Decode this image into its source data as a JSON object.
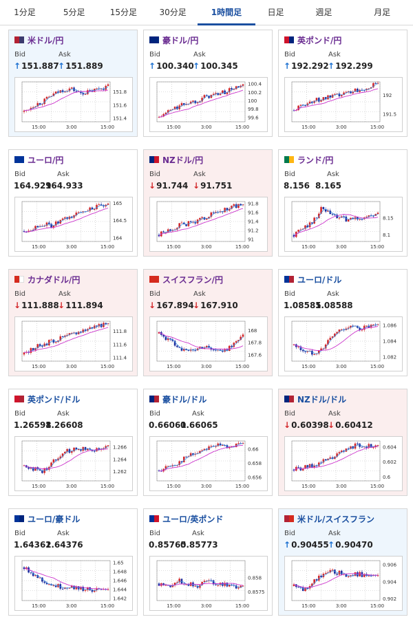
{
  "tabs": [
    "1分足",
    "5分足",
    "15分足",
    "30分足",
    "1時間足",
    "日足",
    "週足",
    "月足"
  ],
  "active_tab": 4,
  "labels": {
    "bid": "Bid",
    "ask": "Ask"
  },
  "colors": {
    "candle_up": "#d2272a",
    "candle_down": "#1e2e9e",
    "ma_short": "#3c8ee0",
    "ma_long": "#cc33cc"
  },
  "cards": [
    {
      "pair": "米ドル/円",
      "flag": [
        "#b22234",
        "#3c3b6e"
      ],
      "bg": "up",
      "dir": "up",
      "bid": "151.887",
      "ask": "151.889",
      "chart_data": {
        "type": "candlestick",
        "x_ticks": [
          "15:00",
          "3:00",
          "15:00"
        ],
        "y_ticks": [
          "151.8",
          "151.6",
          "151.4"
        ],
        "ylim": [
          151.35,
          151.95
        ],
        "trend": [
          151.5,
          151.6,
          151.65,
          151.75,
          151.82,
          151.85,
          151.78,
          151.8,
          151.85,
          151.88
        ]
      }
    },
    {
      "pair": "豪ドル/円",
      "flag": [
        "#00247d",
        "#00247d"
      ],
      "bg": "neutral",
      "dir": "up",
      "bid": "100.340",
      "ask": "100.345",
      "chart_data": {
        "type": "candlestick",
        "x_ticks": [
          "15:00",
          "3:00",
          "15:00"
        ],
        "y_ticks": [
          "100.4",
          "100.2",
          "100",
          "99.8",
          "99.6"
        ],
        "ylim": [
          99.5,
          100.45
        ],
        "trend": [
          99.6,
          99.75,
          99.85,
          99.95,
          100.0,
          100.1,
          100.15,
          100.2,
          100.3,
          100.34
        ]
      }
    },
    {
      "pair": "英ポンド/円",
      "flag": [
        "#cf142b",
        "#00247d"
      ],
      "bg": "neutral",
      "dir": "up",
      "bid": "192.292",
      "ask": "192.299",
      "chart_data": {
        "type": "candlestick",
        "x_ticks": [
          "15:00",
          "3:00",
          "15:00"
        ],
        "y_ticks": [
          "192",
          "191.5"
        ],
        "ylim": [
          191.3,
          192.35
        ],
        "trend": [
          191.6,
          191.75,
          191.85,
          191.9,
          191.95,
          192.0,
          192.1,
          192.15,
          192.22,
          192.29
        ]
      }
    },
    {
      "pair": "ユーロ/円",
      "flag": [
        "#003399",
        "#003399"
      ],
      "bg": "neutral",
      "dir": "none",
      "bid": "164.929",
      "ask": "164.933",
      "chart_data": {
        "type": "candlestick",
        "x_ticks": [
          "15:00",
          "3:00",
          "15:00"
        ],
        "y_ticks": [
          "165",
          "164.5",
          "164"
        ],
        "ylim": [
          163.9,
          165.05
        ],
        "trend": [
          164.2,
          164.3,
          164.4,
          164.35,
          164.5,
          164.6,
          164.75,
          164.85,
          164.9,
          164.93
        ]
      }
    },
    {
      "pair": "NZドル/円",
      "flag": [
        "#00247d",
        "#cc142b"
      ],
      "bg": "down",
      "dir": "down",
      "bid": "91.744",
      "ask": "91.751",
      "chart_data": {
        "type": "candlestick",
        "x_ticks": [
          "15:00",
          "3:00",
          "15:00"
        ],
        "y_ticks": [
          "91.8",
          "91.6",
          "91.4",
          "91.2",
          "91"
        ],
        "ylim": [
          90.95,
          91.85
        ],
        "trend": [
          91.1,
          91.2,
          91.3,
          91.35,
          91.4,
          91.5,
          91.6,
          91.65,
          91.75,
          91.74
        ]
      }
    },
    {
      "pair": "ランド/円",
      "flag": [
        "#007a4d",
        "#ffb612"
      ],
      "bg": "neutral",
      "dir": "none",
      "bid": "8.156",
      "ask": "8.165",
      "chart_data": {
        "type": "candlestick",
        "x_ticks": [
          "15:00",
          "3:00",
          "15:00"
        ],
        "y_ticks": [
          "8.15",
          "8.1"
        ],
        "ylim": [
          8.08,
          8.2
        ],
        "trend": [
          8.1,
          8.12,
          8.14,
          8.18,
          8.16,
          8.15,
          8.145,
          8.15,
          8.155,
          8.16
        ]
      }
    },
    {
      "pair": "カナダドル/円",
      "flag": [
        "#d52b1e",
        "#ffffff"
      ],
      "bg": "down",
      "dir": "down",
      "bid": "111.888",
      "ask": "111.894",
      "chart_data": {
        "type": "candlestick",
        "x_ticks": [
          "15:00",
          "3:00",
          "15:00"
        ],
        "y_ticks": [
          "111.8",
          "111.6",
          "111.4"
        ],
        "ylim": [
          111.35,
          111.95
        ],
        "trend": [
          111.45,
          111.55,
          111.6,
          111.65,
          111.7,
          111.75,
          111.8,
          111.85,
          111.9,
          111.888
        ]
      }
    },
    {
      "pair": "スイスフラン/円",
      "flag": [
        "#d52b1e",
        "#d52b1e"
      ],
      "bg": "down",
      "dir": "down",
      "bid": "167.894",
      "ask": "167.910",
      "chart_data": {
        "type": "candlestick",
        "x_ticks": [
          "15:00",
          "3:00",
          "15:00"
        ],
        "y_ticks": [
          "168",
          "167.8",
          "167.6"
        ],
        "ylim": [
          167.5,
          168.15
        ],
        "trend": [
          167.95,
          167.85,
          167.75,
          167.65,
          167.7,
          167.75,
          167.68,
          167.65,
          167.8,
          167.9
        ]
      }
    },
    {
      "pair": "ユーロ/ドル",
      "flag": [
        "#003399",
        "#b22234"
      ],
      "bg": "neutral",
      "dir": "none",
      "bid": "1.08585",
      "ask": "1.08588",
      "chart_data": {
        "type": "candlestick",
        "x_ticks": [
          "15:00",
          "3:00",
          "15:00"
        ],
        "y_ticks": [
          "1.086",
          "1.084",
          "1.082"
        ],
        "ylim": [
          1.0815,
          1.0865
        ],
        "trend": [
          1.0835,
          1.0828,
          1.0825,
          1.083,
          1.0845,
          1.0855,
          1.0858,
          1.0856,
          1.0858,
          1.08585
        ]
      }
    },
    {
      "pair": "英ポンド/ドル",
      "flag": [
        "#cf142b",
        "#b22234"
      ],
      "bg": "neutral",
      "dir": "none",
      "bid": "1.26598",
      "ask": "1.26608",
      "chart_data": {
        "type": "candlestick",
        "x_ticks": [
          "15:00",
          "3:00",
          "15:00"
        ],
        "y_ticks": [
          "1.266",
          "1.264",
          "1.262"
        ],
        "ylim": [
          1.2605,
          1.267
        ],
        "trend": [
          1.263,
          1.2625,
          1.262,
          1.2635,
          1.265,
          1.2655,
          1.2658,
          1.2656,
          1.2658,
          1.26598
        ]
      }
    },
    {
      "pair": "豪ドル/ドル",
      "flag": [
        "#00247d",
        "#b22234"
      ],
      "bg": "neutral",
      "dir": "none",
      "bid": "0.66061",
      "ask": "0.66065",
      "chart_data": {
        "type": "candlestick",
        "x_ticks": [
          "15:00",
          "3:00",
          "15:00"
        ],
        "y_ticks": [
          "0.66",
          "0.658",
          "0.656"
        ],
        "ylim": [
          0.6555,
          0.6612
        ],
        "trend": [
          0.657,
          0.6575,
          0.658,
          0.659,
          0.6595,
          0.6602,
          0.6606,
          0.6604,
          0.6606,
          0.66061
        ]
      }
    },
    {
      "pair": "NZドル/ドル",
      "flag": [
        "#00247d",
        "#b22234"
      ],
      "bg": "down",
      "dir": "down",
      "bid": "0.60398",
      "ask": "0.60412",
      "chart_data": {
        "type": "candlestick",
        "x_ticks": [
          "15:00",
          "3:00",
          "15:00"
        ],
        "y_ticks": [
          "0.604",
          "0.602",
          "0.6"
        ],
        "ylim": [
          0.5995,
          0.6048
        ],
        "trend": [
          0.601,
          0.6012,
          0.6015,
          0.602,
          0.6025,
          0.6032,
          0.604,
          0.6043,
          0.6041,
          0.60398
        ]
      }
    },
    {
      "pair": "ユーロ/豪ドル",
      "flag": [
        "#003399",
        "#00247d"
      ],
      "bg": "neutral",
      "dir": "none",
      "bid": "1.64362",
      "ask": "1.64376",
      "chart_data": {
        "type": "candlestick",
        "x_ticks": [
          "15:00",
          "3:00",
          "15:00"
        ],
        "y_ticks": [
          "1.65",
          "1.648",
          "1.646",
          "1.644",
          "1.642"
        ],
        "ylim": [
          1.6415,
          1.6505
        ],
        "trend": [
          1.649,
          1.6475,
          1.646,
          1.645,
          1.6445,
          1.6447,
          1.6442,
          1.644,
          1.6438,
          1.64362
        ]
      }
    },
    {
      "pair": "ユーロ/英ポンド",
      "flag": [
        "#003399",
        "#cf142b"
      ],
      "bg": "neutral",
      "dir": "none",
      "bid": "0.85765",
      "ask": "0.85773",
      "chart_data": {
        "type": "candlestick",
        "x_ticks": [
          "15:00",
          "3:00",
          "15:00"
        ],
        "y_ticks": [
          "0.858",
          "0.8575"
        ],
        "ylim": [
          0.8572,
          0.8586
        ],
        "trend": [
          0.8578,
          0.8577,
          0.8579,
          0.8578,
          0.8577,
          0.8579,
          0.8578,
          0.8578,
          0.8577,
          0.85765
        ]
      }
    },
    {
      "pair": "米ドル/スイスフラン",
      "flag": [
        "#b22234",
        "#d52b1e"
      ],
      "bg": "up",
      "dir": "up",
      "bid": "0.90455",
      "ask": "0.90470",
      "chart_data": {
        "type": "candlestick",
        "x_ticks": [
          "15:00",
          "3:00",
          "15:00"
        ],
        "y_ticks": [
          "0.906",
          "0.904",
          "0.902"
        ],
        "ylim": [
          0.9018,
          0.9065
        ],
        "trend": [
          0.9035,
          0.903,
          0.904,
          0.9048,
          0.9052,
          0.905,
          0.9048,
          0.9049,
          0.9047,
          0.90455
        ]
      }
    }
  ]
}
